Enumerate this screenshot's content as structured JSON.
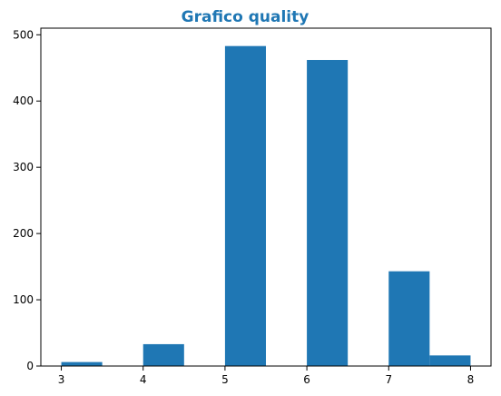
{
  "colors": {
    "bar": "#1f77b4",
    "title": "#1f77b4",
    "axis": "#000000"
  },
  "chart_data": {
    "type": "bar",
    "title": "Grafico quality",
    "xlabel": "",
    "ylabel": "",
    "xlim": [
      2.75,
      8.25
    ],
    "ylim": [
      0,
      510
    ],
    "grid": false,
    "legend": "none",
    "bins": [
      {
        "start": 3.0,
        "end": 3.5,
        "count": 6
      },
      {
        "start": 3.5,
        "end": 4.0,
        "count": 0
      },
      {
        "start": 4.0,
        "end": 4.5,
        "count": 33
      },
      {
        "start": 4.5,
        "end": 5.0,
        "count": 0
      },
      {
        "start": 5.0,
        "end": 5.5,
        "count": 483
      },
      {
        "start": 5.5,
        "end": 6.0,
        "count": 0
      },
      {
        "start": 6.0,
        "end": 6.5,
        "count": 462
      },
      {
        "start": 6.5,
        "end": 7.0,
        "count": 0
      },
      {
        "start": 7.0,
        "end": 7.5,
        "count": 143
      },
      {
        "start": 7.5,
        "end": 8.0,
        "count": 16
      }
    ],
    "x_ticks": [
      {
        "value": 3,
        "label": "3"
      },
      {
        "value": 4,
        "label": "4"
      },
      {
        "value": 5,
        "label": "5"
      },
      {
        "value": 6,
        "label": "6"
      },
      {
        "value": 7,
        "label": "7"
      },
      {
        "value": 8,
        "label": "8"
      }
    ],
    "y_ticks": [
      {
        "value": 0,
        "label": "0"
      },
      {
        "value": 100,
        "label": "100"
      },
      {
        "value": 200,
        "label": "200"
      },
      {
        "value": 300,
        "label": "300"
      },
      {
        "value": 400,
        "label": "400"
      },
      {
        "value": 500,
        "label": "500"
      }
    ]
  }
}
